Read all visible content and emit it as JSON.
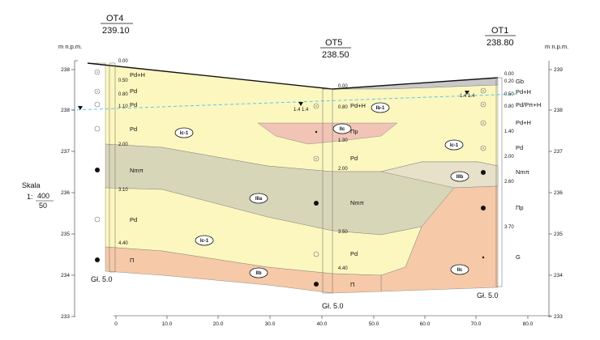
{
  "unit_label_left": "m n.p.m.",
  "unit_label_right": "m n.p.m.",
  "scale": {
    "label": "Skala",
    "prefix": "1:",
    "vertical": "400",
    "horizontal": "50"
  },
  "y_axis": {
    "ticks": [
      "238",
      "238",
      "237",
      "236",
      "235",
      "234",
      "233"
    ],
    "right_ticks": [
      "239",
      "238",
      "237",
      "236",
      "235",
      "234",
      "233"
    ]
  },
  "x_axis": {
    "ticks": [
      "0",
      "10.0",
      "20.0",
      "30.0",
      "40.0",
      "50.0",
      "60.0",
      "70.0",
      "80.0"
    ]
  },
  "boreholes": [
    {
      "name": "OT4",
      "elevation": "239.10",
      "depth_label": "Gł. 5.0",
      "depths": [
        "0.00",
        "0.50",
        "0.80",
        "1.10",
        "2.00",
        "3.10",
        "4.40"
      ],
      "layers": [
        "Pd+H",
        "Pd",
        "Pd",
        "Pd",
        "Nmπ",
        "Pd",
        "Π"
      ]
    },
    {
      "name": "OT5",
      "elevation": "238.50",
      "depth_label": "Gł. 5.0",
      "depths": [
        "0.00",
        "0.80",
        "1.30",
        "2.00",
        "3.50",
        "4.40"
      ],
      "layers": [
        "Pd+H",
        "Πp",
        "Pd",
        "Nmπ",
        "Pd",
        "Π"
      ]
    },
    {
      "name": "OT1",
      "elevation": "238.80",
      "depth_label": "Gł. 5.0",
      "depths": [
        "0.00",
        "0.20",
        "0.50",
        "0.80",
        "1.40",
        "2.00",
        "2.60",
        "3.70"
      ],
      "layers": [
        "Gb",
        "Pd+H",
        "Pd/Pπ+H",
        "Pd+H",
        "Pd",
        "Nmπ",
        "Πp",
        "G"
      ]
    }
  ],
  "zones": [
    "Ib-1",
    "Ic-1",
    "IIc",
    "Ic-1",
    "IIIa",
    "IIIb",
    "Ic-1",
    "IIb",
    "IIc"
  ],
  "water_marks": [
    "1.4",
    "1.4",
    "1.4",
    "1.4"
  ],
  "colors": {
    "yellow": "#fbf7bf",
    "olive": "#d8d6b8",
    "salmon": "#f6c9a8",
    "pink": "#f1c4b6",
    "grey_top": "#c9c9c9",
    "water": "#5fc6e6"
  }
}
